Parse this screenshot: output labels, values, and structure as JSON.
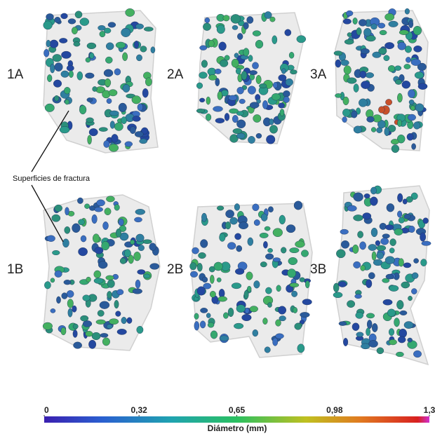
{
  "panels": [
    {
      "label": "1A"
    },
    {
      "label": "2A"
    },
    {
      "label": "3A"
    },
    {
      "label": "1B"
    },
    {
      "label": "2B"
    },
    {
      "label": "3B"
    }
  ],
  "annotation": "Superficies de fractura",
  "colorbar": {
    "label": "Diámetro (mm)",
    "lim": [
      0,
      1.3
    ],
    "ticks": [
      0,
      {
        "value": 0.32,
        "label": "0,32"
      },
      {
        "value": 0.65,
        "label": "0,65"
      },
      {
        "value": 0.98,
        "label": "0,98"
      },
      {
        "value": 1.3,
        "label": "1,3"
      }
    ]
  }
}
